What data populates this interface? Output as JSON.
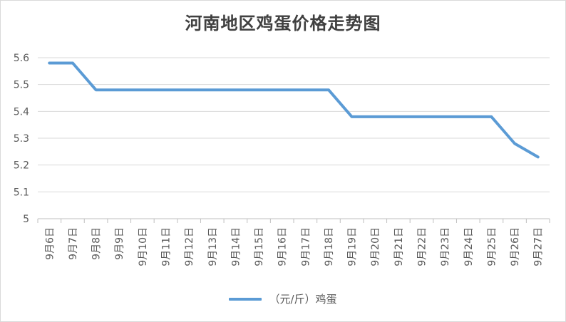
{
  "chart_data": {
    "type": "line",
    "title": "河南地区鸡蛋价格走势图",
    "categories": [
      "9月6日",
      "9月7日",
      "9月8日",
      "9月9日",
      "9月10日",
      "9月11日",
      "9月12日",
      "9月13日",
      "9月14日",
      "9月15日",
      "9月16日",
      "9月17日",
      "9月18日",
      "9月19日",
      "9月20日",
      "9月21日",
      "9月22日",
      "9月23日",
      "9月24日",
      "9月25日",
      "9月26日",
      "9月27日"
    ],
    "series": [
      {
        "name": "（元/斤）鸡蛋",
        "color": "#5b9bd5",
        "values": [
          5.58,
          5.58,
          5.48,
          5.48,
          5.48,
          5.48,
          5.48,
          5.48,
          5.48,
          5.48,
          5.48,
          5.48,
          5.48,
          5.38,
          5.38,
          5.38,
          5.38,
          5.38,
          5.38,
          5.38,
          5.28,
          5.23
        ]
      }
    ],
    "ylim": [
      5,
      5.6
    ],
    "yticks": [
      "5",
      "5.1",
      "5.2",
      "5.3",
      "5.4",
      "5.5",
      "5.6"
    ],
    "grid": true,
    "legend": "bottom"
  }
}
